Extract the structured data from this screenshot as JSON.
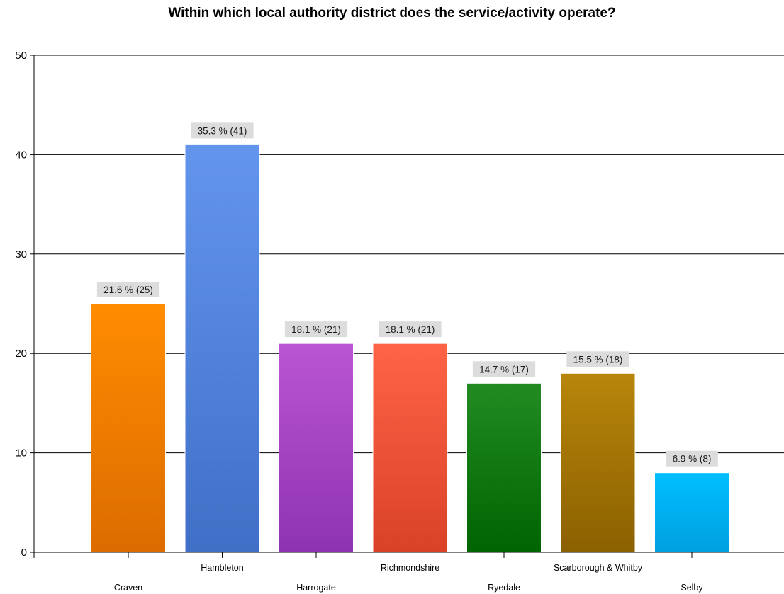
{
  "chart_data": {
    "type": "bar",
    "title": "Within which local authority district does the service/activity operate?",
    "xlabel": "",
    "ylabel": "",
    "ylim": [
      0,
      50
    ],
    "yticks": [
      0,
      10,
      20,
      30,
      40,
      50
    ],
    "grid": true,
    "legend": "none",
    "categories": [
      "Craven",
      "Hambleton",
      "Harrogate",
      "Richmondshire",
      "Ryedale",
      "Scarborough & Whitby",
      "Selby"
    ],
    "values": [
      25,
      41,
      21,
      21,
      17,
      18,
      8
    ],
    "data_labels": [
      "21.6 % (25)",
      "35.3 % (41)",
      "18.1 % (21)",
      "18.1 % (21)",
      "14.7 % (17)",
      "15.5 % (18)",
      "6.9 % (8)"
    ],
    "colors": [
      [
        "#ff8c00",
        "#dc6c00"
      ],
      [
        "#6495ed",
        "#3f6fc6"
      ],
      [
        "#ba55d3",
        "#8e33b0"
      ],
      [
        "#ff6347",
        "#d94228"
      ],
      [
        "#228b22",
        "#006400"
      ],
      [
        "#b8860b",
        "#8b6000"
      ],
      [
        "#00bfff",
        "#00a0e0"
      ]
    ]
  }
}
